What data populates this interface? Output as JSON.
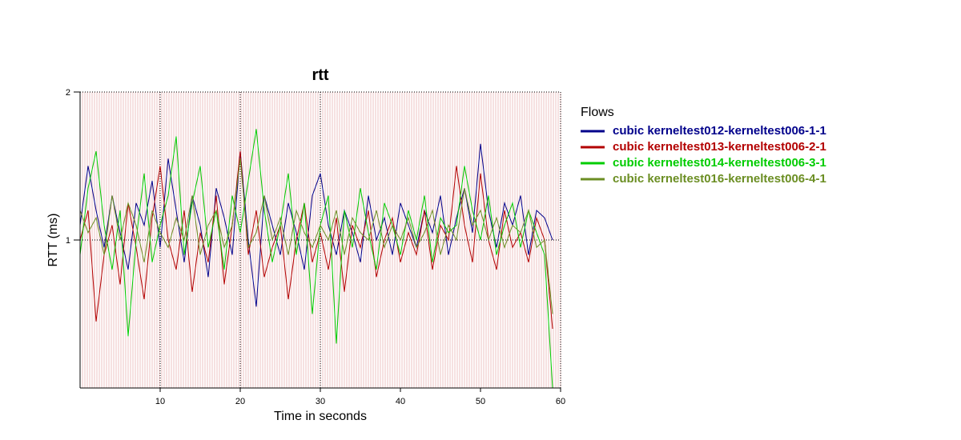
{
  "chart_data": {
    "type": "line",
    "title": "rtt",
    "xlabel": "Time in seconds",
    "ylabel": "RTT (ms)",
    "xlim": [
      0,
      60
    ],
    "ylim": [
      0,
      2
    ],
    "x_ticks": [
      10,
      20,
      30,
      40,
      50,
      60
    ],
    "y_ticks": [
      1,
      2
    ],
    "grid": {
      "x_dotted_at": [
        10,
        20,
        30
      ],
      "y_dotted_at": [
        1
      ]
    },
    "background_vlines": {
      "color": "#e8b4b4",
      "interval_s": 0.3
    },
    "legend": {
      "title": "Flows",
      "placement": "right",
      "entries": [
        {
          "label": "cubic kerneltest012-kerneltest006-1-1",
          "color": "#00008b"
        },
        {
          "label": "cubic kerneltest013-kerneltest006-2-1",
          "color": "#b30000"
        },
        {
          "label": "cubic kerneltest014-kerneltest006-3-1",
          "color": "#00cc00"
        },
        {
          "label": "cubic kerneltest016-kerneltest006-4-1",
          "color": "#6b8e23"
        }
      ]
    },
    "series": [
      {
        "name": "cubic kerneltest012-kerneltest006-1-1",
        "color": "#00008b",
        "x": [
          0,
          1,
          2,
          3,
          4,
          5,
          6,
          7,
          8,
          9,
          10,
          11,
          12,
          13,
          14,
          15,
          16,
          17,
          18,
          19,
          20,
          21,
          22,
          23,
          24,
          25,
          26,
          27,
          28,
          29,
          30,
          31,
          32,
          33,
          34,
          35,
          36,
          37,
          38,
          39,
          40,
          41,
          42,
          43,
          44,
          45,
          46,
          47,
          48,
          49,
          50,
          51,
          52,
          53,
          54,
          55,
          56,
          57,
          58,
          59
        ],
        "values": [
          1.1,
          1.5,
          1.2,
          0.95,
          1.3,
          1.05,
          0.8,
          1.25,
          1.1,
          1.4,
          0.95,
          1.55,
          1.2,
          0.85,
          1.3,
          1.1,
          0.75,
          1.35,
          1.15,
          0.9,
          1.6,
          1.0,
          0.55,
          1.3,
          1.1,
          0.9,
          1.25,
          1.05,
          0.8,
          1.3,
          1.45,
          1.1,
          0.9,
          1.2,
          1.05,
          0.85,
          1.3,
          1.0,
          1.15,
          0.9,
          1.25,
          1.1,
          0.95,
          1.2,
          1.05,
          1.3,
          0.9,
          1.15,
          1.35,
          1.05,
          1.65,
          1.2,
          0.95,
          1.25,
          1.1,
          1.3,
          0.9,
          1.2,
          1.15,
          1.0
        ]
      },
      {
        "name": "cubic kerneltest013-kerneltest006-2-1",
        "color": "#b30000",
        "x": [
          0,
          1,
          2,
          3,
          4,
          5,
          6,
          7,
          8,
          9,
          10,
          11,
          12,
          13,
          14,
          15,
          16,
          17,
          18,
          19,
          20,
          21,
          22,
          23,
          24,
          25,
          26,
          27,
          28,
          29,
          30,
          31,
          32,
          33,
          34,
          35,
          36,
          37,
          38,
          39,
          40,
          41,
          42,
          43,
          44,
          45,
          46,
          47,
          48,
          49,
          50,
          51,
          52,
          53,
          54,
          55,
          56,
          57,
          58,
          59
        ],
        "values": [
          1.0,
          1.2,
          0.45,
          0.9,
          1.1,
          0.7,
          1.25,
          0.95,
          0.6,
          1.15,
          1.5,
          1.0,
          0.8,
          1.2,
          0.65,
          1.05,
          0.85,
          1.3,
          0.7,
          1.1,
          1.6,
          0.9,
          1.2,
          0.75,
          0.95,
          1.1,
          0.6,
          1.0,
          1.25,
          0.85,
          1.05,
          0.8,
          1.15,
          0.65,
          1.1,
          0.95,
          1.2,
          0.75,
          1.0,
          1.15,
          0.85,
          1.05,
          0.9,
          1.2,
          0.8,
          1.1,
          1.0,
          1.5,
          1.1,
          0.85,
          1.45,
          1.0,
          0.8,
          1.2,
          0.95,
          1.05,
          0.85,
          1.15,
          1.0,
          0.4
        ]
      },
      {
        "name": "cubic kerneltest014-kerneltest006-3-1",
        "color": "#00cc00",
        "x": [
          0,
          1,
          2,
          3,
          4,
          5,
          6,
          7,
          8,
          9,
          10,
          11,
          12,
          13,
          14,
          15,
          16,
          17,
          18,
          19,
          20,
          21,
          22,
          23,
          24,
          25,
          26,
          27,
          28,
          29,
          30,
          31,
          32,
          33,
          34,
          35,
          36,
          37,
          38,
          39,
          40,
          41,
          42,
          43,
          44,
          45,
          46,
          47,
          48,
          49,
          50,
          51,
          52,
          53,
          54,
          55,
          56,
          57,
          58,
          59
        ],
        "values": [
          0.9,
          1.35,
          1.6,
          1.1,
          0.8,
          1.2,
          0.35,
          1.0,
          1.45,
          0.85,
          1.1,
          1.3,
          1.7,
          0.9,
          1.25,
          1.5,
          0.95,
          1.2,
          0.8,
          1.3,
          1.05,
          1.4,
          1.75,
          1.2,
          0.85,
          1.1,
          1.45,
          0.9,
          1.25,
          0.5,
          1.1,
          1.3,
          0.3,
          1.2,
          0.95,
          1.35,
          1.05,
          0.8,
          1.25,
          1.1,
          0.9,
          1.2,
          1.0,
          1.3,
          0.85,
          1.15,
          1.05,
          1.1,
          1.5,
          1.2,
          1.0,
          1.3,
          0.9,
          1.1,
          1.25,
          0.95,
          1.2,
          1.05,
          0.9,
          0.0
        ]
      },
      {
        "name": "cubic kerneltest016-kerneltest006-4-1",
        "color": "#6b8e23",
        "x": [
          0,
          1,
          2,
          3,
          4,
          5,
          6,
          7,
          8,
          9,
          10,
          11,
          12,
          13,
          14,
          15,
          16,
          17,
          18,
          19,
          20,
          21,
          22,
          23,
          24,
          25,
          26,
          27,
          28,
          29,
          30,
          31,
          32,
          33,
          34,
          35,
          36,
          37,
          38,
          39,
          40,
          41,
          42,
          43,
          44,
          45,
          46,
          47,
          48,
          49,
          50,
          51,
          52,
          53,
          54,
          55,
          56,
          57,
          58,
          59
        ],
        "values": [
          1.2,
          1.05,
          1.15,
          0.9,
          1.3,
          1.0,
          1.25,
          1.1,
          0.85,
          1.2,
          1.05,
          0.95,
          1.15,
          1.0,
          1.3,
          0.9,
          1.1,
          1.2,
          0.95,
          1.1,
          1.55,
          0.95,
          1.05,
          1.3,
          1.0,
          1.15,
          0.9,
          1.2,
          1.05,
          0.95,
          1.1,
          1.0,
          1.2,
          0.9,
          1.15,
          1.05,
          1.0,
          1.2,
          0.95,
          1.1,
          1.0,
          1.15,
          0.95,
          1.05,
          1.2,
          0.9,
          1.1,
          1.0,
          1.35,
          1.1,
          1.2,
          1.0,
          1.15,
          0.95,
          1.1,
          1.05,
          1.2,
          0.95,
          1.0,
          0.5
        ]
      }
    ]
  }
}
